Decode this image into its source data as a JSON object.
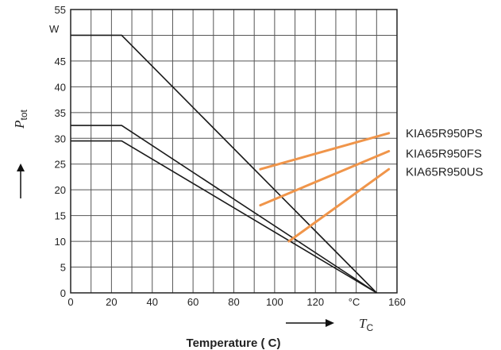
{
  "chart_data": {
    "type": "line",
    "xlabel": "Temperature ( C)",
    "x_symbol": "T",
    "x_symbol_sub": "C",
    "x_unit": "°C",
    "y_symbol": "P",
    "y_symbol_sub": "tot",
    "y_unit": "W",
    "xlim": [
      0,
      160
    ],
    "ylim": [
      0,
      55
    ],
    "x_ticks": [
      0,
      20,
      40,
      60,
      80,
      100,
      120,
      160
    ],
    "y_ticks": [
      0,
      5,
      10,
      15,
      20,
      25,
      30,
      35,
      40,
      45,
      55
    ],
    "grid": true,
    "colors": {
      "curve": "#1a1a1a",
      "leader": "#f0954a",
      "grid": "#555555"
    },
    "series": [
      {
        "name": "KIA65R950PS",
        "x": [
          0,
          25,
          150
        ],
        "y": [
          50,
          50,
          0
        ],
        "leader": [
          [
            93,
            24
          ],
          [
            156,
            31
          ]
        ],
        "label_y": 31
      },
      {
        "name": "KIA65R950FS",
        "x": [
          0,
          25,
          150
        ],
        "y": [
          32.5,
          32.5,
          0
        ],
        "leader": [
          [
            93,
            17
          ],
          [
            156,
            27.5
          ]
        ],
        "label_y": 27
      },
      {
        "name": "KIA65R950US",
        "x": [
          0,
          25,
          150
        ],
        "y": [
          29.5,
          29.5,
          0
        ],
        "leader": [
          [
            107,
            10
          ],
          [
            156,
            24
          ]
        ],
        "label_y": 23.5
      }
    ]
  }
}
